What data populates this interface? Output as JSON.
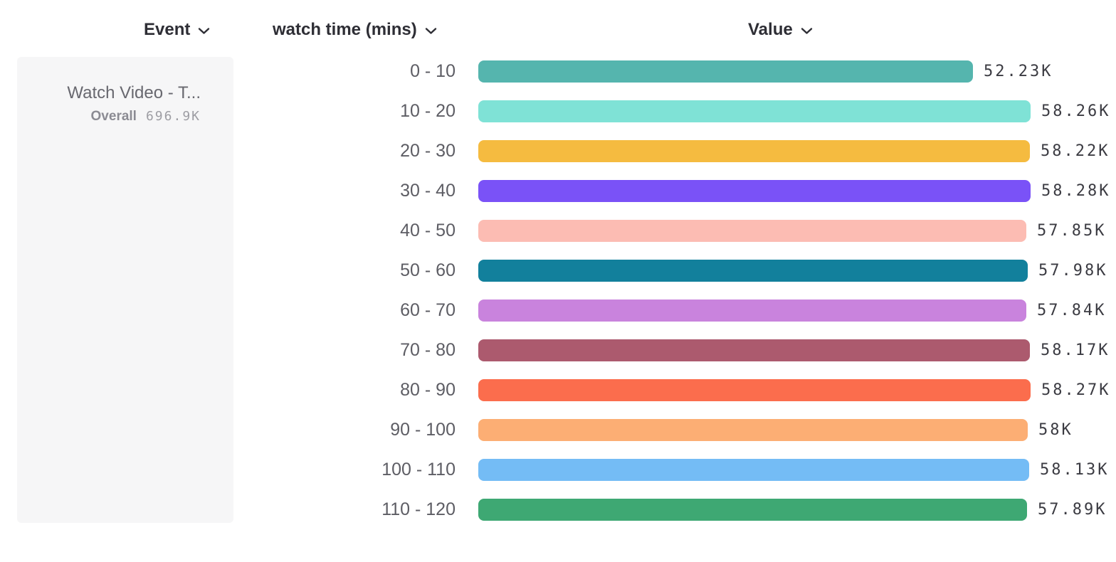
{
  "columns": [
    {
      "id": "event",
      "label": "Event"
    },
    {
      "id": "breakdown",
      "label": "watch time (mins)"
    },
    {
      "id": "value",
      "label": "Value"
    }
  ],
  "event_card": {
    "title": "Watch Video - T...",
    "overall_label": "Overall",
    "overall_value": "696.9K"
  },
  "icons": {
    "chevron_down": "chevron-down-icon"
  },
  "chart_data": {
    "type": "bar",
    "orientation": "horizontal",
    "title": "",
    "xlabel": "Value",
    "ylabel": "watch time (mins)",
    "grid": false,
    "legend": false,
    "xlim": [
      0,
      58280
    ],
    "categories": [
      "0 - 10",
      "10 - 20",
      "20 - 30",
      "30 - 40",
      "40 - 50",
      "50 - 60",
      "60 - 70",
      "70 - 80",
      "80 - 90",
      "90 - 100",
      "100 - 110",
      "110 - 120"
    ],
    "values": [
      52230,
      58260,
      58220,
      58280,
      57850,
      57980,
      57840,
      58170,
      58270,
      58000,
      58130,
      57890
    ],
    "value_labels": [
      "52.23K",
      "58.26K",
      "58.22K",
      "58.28K",
      "57.85K",
      "57.98K",
      "57.84K",
      "58.17K",
      "58.27K",
      "58K",
      "58.13K",
      "57.89K"
    ],
    "colors": [
      "#55b5ae",
      "#7fe2d6",
      "#f5bb40",
      "#7a52f7",
      "#fcbcb3",
      "#12809c",
      "#c983dd",
      "#ac5a6e",
      "#fb6d4d",
      "#fcae74",
      "#74bcf5",
      "#3ea873"
    ],
    "text_color": "#2e2e35",
    "label_color": "#5d5d64",
    "value_color": "#3b3b42"
  }
}
